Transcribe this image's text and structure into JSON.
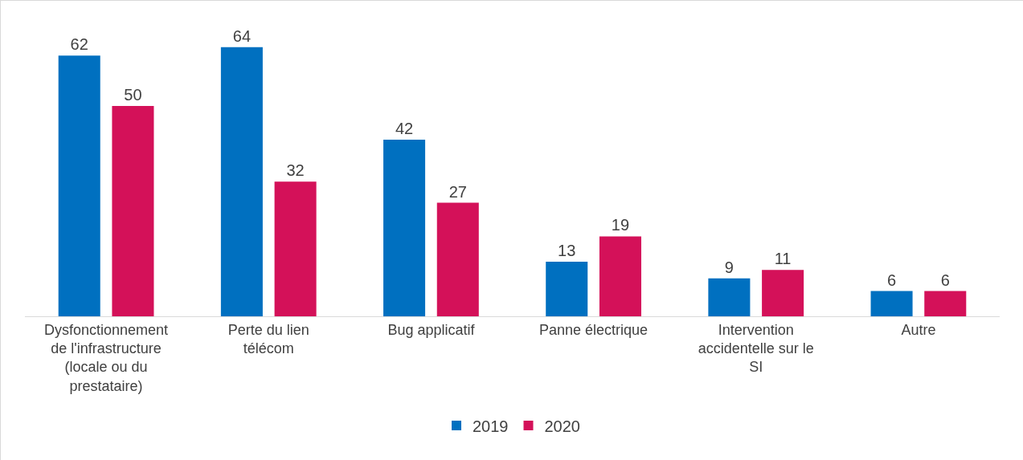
{
  "chart_data": {
    "type": "bar",
    "categories": [
      "Dysfonctionnement de l'infrastructure (locale ou du prestataire)",
      "Perte du lien télécom",
      "Bug applicatif",
      "Panne électrique",
      "Intervention accidentelle sur le SI",
      "Autre"
    ],
    "series": [
      {
        "name": "2019",
        "color": "#0070c0",
        "values": [
          62,
          64,
          42,
          13,
          9,
          6
        ]
      },
      {
        "name": "2020",
        "color": "#d41159",
        "values": [
          50,
          32,
          27,
          19,
          11,
          6
        ]
      }
    ],
    "data_labels": true,
    "legend": "bottom",
    "grid": false
  }
}
